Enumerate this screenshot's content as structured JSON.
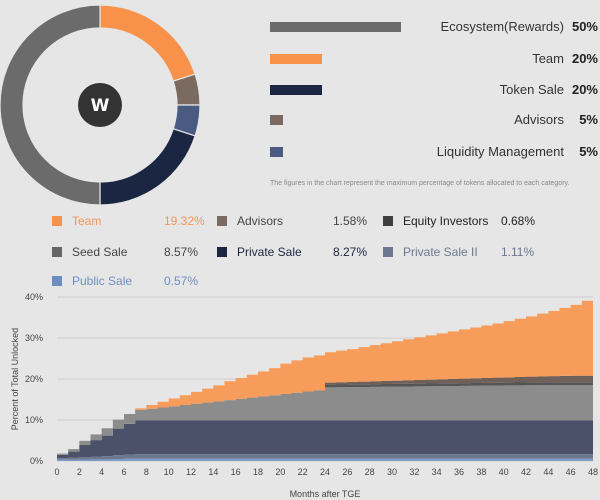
{
  "allocation": {
    "logo_text": "W",
    "items": [
      {
        "label": "Ecosystem(Rewards)",
        "value": "50%",
        "pct": 50,
        "color": "#6b6b6b"
      },
      {
        "label": "Team",
        "value": "20%",
        "pct": 20,
        "color": "#f8924a"
      },
      {
        "label": "Token Sale",
        "value": "20%",
        "pct": 20,
        "color": "#1b2642"
      },
      {
        "label": "Advisors",
        "value": "5%",
        "pct": 5,
        "color": "#7a6a60"
      },
      {
        "label": "Liquidity Management",
        "value": "5%",
        "pct": 5,
        "color": "#4a5a80"
      }
    ],
    "note": "The figures in the chart represent the maximum percentage of tokens allocated to each category."
  },
  "legend": [
    {
      "label": "Team",
      "value": "19.32%",
      "color": "#f8924a",
      "text_color": "#f39456"
    },
    {
      "label": "Advisors",
      "value": "1.58%",
      "color": "#7a6a60",
      "text_color": "#444444"
    },
    {
      "label": "Equity Investors",
      "value": "0.68%",
      "color": "#3e3e3e",
      "text_color": "#222222"
    },
    {
      "label": "Seed Sale",
      "value": "8.57%",
      "color": "#666666",
      "text_color": "#444444"
    },
    {
      "label": "Private Sale",
      "value": "8.27%",
      "color": "#1b2642",
      "text_color": "#1b2642"
    },
    {
      "label": "Private Sale II",
      "value": "1.11%",
      "color": "#6d7890",
      "text_color": "#6d7890"
    },
    {
      "label": "Public Sale",
      "value": "0.57%",
      "color": "#6d8ec0",
      "text_color": "#6d8ec0"
    }
  ],
  "chart_data": {
    "type": "area",
    "stacked": true,
    "title": "",
    "xlabel": "Months after TGE",
    "ylabel": "Percent of Total Unlocked",
    "xlim": [
      0,
      48
    ],
    "ylim": [
      0,
      40
    ],
    "x_ticks": [
      0,
      2,
      4,
      6,
      8,
      10,
      12,
      14,
      16,
      18,
      20,
      22,
      24,
      26,
      28,
      30,
      32,
      34,
      36,
      38,
      40,
      42,
      44,
      46,
      48
    ],
    "y_ticks": [
      0,
      10,
      20,
      30,
      40
    ],
    "y_tick_labels": [
      "0%",
      "10%",
      "20%",
      "30%",
      "40%"
    ],
    "series": [
      {
        "name": "Public Sale",
        "color": "#7d9cc8",
        "values": [
          0.3,
          0.3,
          0.3,
          0.4,
          0.4,
          0.5,
          0.57,
          0.57,
          0.57,
          0.57,
          0.57,
          0.57,
          0.57,
          0.57,
          0.57,
          0.57,
          0.57,
          0.57,
          0.57,
          0.57,
          0.57,
          0.57,
          0.57,
          0.57,
          0.57,
          0.57,
          0.57,
          0.57,
          0.57,
          0.57,
          0.57,
          0.57,
          0.57,
          0.57,
          0.57,
          0.57,
          0.57,
          0.57,
          0.57,
          0.57,
          0.57,
          0.57,
          0.57,
          0.57,
          0.57,
          0.57,
          0.57,
          0.57,
          0.57
        ]
      },
      {
        "name": "Private Sale II",
        "color": "#6d7890",
        "values": [
          0.4,
          0.5,
          0.6,
          0.7,
          0.8,
          0.9,
          1.0,
          1.1,
          1.11,
          1.11,
          1.11,
          1.11,
          1.11,
          1.11,
          1.11,
          1.11,
          1.11,
          1.11,
          1.11,
          1.11,
          1.11,
          1.11,
          1.11,
          1.11,
          1.11,
          1.11,
          1.11,
          1.11,
          1.11,
          1.11,
          1.11,
          1.11,
          1.11,
          1.11,
          1.11,
          1.11,
          1.11,
          1.11,
          1.11,
          1.11,
          1.11,
          1.11,
          1.11,
          1.11,
          1.11,
          1.11,
          1.11,
          1.11,
          1.11
        ]
      },
      {
        "name": "Private Sale",
        "color": "#4a5168",
        "values": [
          0.8,
          1.5,
          3.0,
          4.0,
          5.0,
          6.5,
          7.5,
          8.27,
          8.27,
          8.27,
          8.27,
          8.27,
          8.27,
          8.27,
          8.27,
          8.27,
          8.27,
          8.27,
          8.27,
          8.27,
          8.27,
          8.27,
          8.27,
          8.27,
          8.27,
          8.27,
          8.27,
          8.27,
          8.27,
          8.27,
          8.27,
          8.27,
          8.27,
          8.27,
          8.27,
          8.27,
          8.27,
          8.27,
          8.27,
          8.27,
          8.27,
          8.27,
          8.27,
          8.27,
          8.27,
          8.27,
          8.27,
          8.27,
          8.27
        ]
      },
      {
        "name": "Seed Sale",
        "color": "#8c8c8c",
        "values": [
          0.3,
          0.6,
          1.0,
          1.4,
          1.8,
          2.2,
          2.4,
          2.5,
          2.8,
          3.1,
          3.4,
          3.7,
          4.0,
          4.3,
          4.6,
          4.9,
          5.2,
          5.5,
          5.8,
          6.1,
          6.4,
          6.7,
          7.0,
          7.3,
          8.0,
          8.03,
          8.06,
          8.09,
          8.12,
          8.15,
          8.18,
          8.21,
          8.24,
          8.27,
          8.3,
          8.33,
          8.36,
          8.39,
          8.42,
          8.45,
          8.48,
          8.51,
          8.54,
          8.57,
          8.57,
          8.57,
          8.57,
          8.57,
          8.57
        ]
      },
      {
        "name": "Equity Investors",
        "color": "#555555",
        "values": [
          0,
          0,
          0,
          0,
          0,
          0,
          0,
          0,
          0,
          0,
          0,
          0,
          0,
          0,
          0,
          0,
          0,
          0,
          0,
          0,
          0,
          0,
          0,
          0,
          0.68,
          0.68,
          0.68,
          0.68,
          0.68,
          0.68,
          0.68,
          0.68,
          0.68,
          0.68,
          0.68,
          0.68,
          0.68,
          0.68,
          0.68,
          0.68,
          0.68,
          0.68,
          0.68,
          0.68,
          0.68,
          0.68,
          0.68,
          0.68,
          0.68
        ]
      },
      {
        "name": "Advisors",
        "color": "#6f6059",
        "values": [
          0,
          0,
          0,
          0,
          0,
          0,
          0,
          0,
          0,
          0,
          0,
          0,
          0,
          0,
          0,
          0,
          0,
          0,
          0,
          0,
          0,
          0,
          0,
          0,
          0.5,
          0.55,
          0.6,
          0.65,
          0.7,
          0.75,
          0.8,
          0.85,
          0.9,
          0.95,
          1.0,
          1.05,
          1.1,
          1.15,
          1.2,
          1.25,
          1.3,
          1.35,
          1.4,
          1.45,
          1.5,
          1.55,
          1.58,
          1.58,
          1.58
        ]
      },
      {
        "name": "Team",
        "color": "#f89c5b",
        "values": [
          0,
          0,
          0,
          0,
          0,
          0,
          0,
          0.4,
          0.9,
          1.4,
          1.9,
          2.4,
          2.9,
          3.4,
          3.9,
          4.6,
          5.1,
          5.6,
          6.1,
          6.6,
          7.4,
          7.9,
          8.3,
          8.5,
          7.4,
          7.7,
          8.0,
          8.4,
          8.8,
          9.2,
          9.6,
          10.0,
          10.4,
          10.8,
          11.2,
          11.6,
          12.0,
          12.4,
          12.8,
          13.2,
          13.7,
          14.2,
          14.7,
          15.3,
          15.9,
          16.6,
          17.3,
          18.3,
          19.32
        ]
      }
    ]
  }
}
